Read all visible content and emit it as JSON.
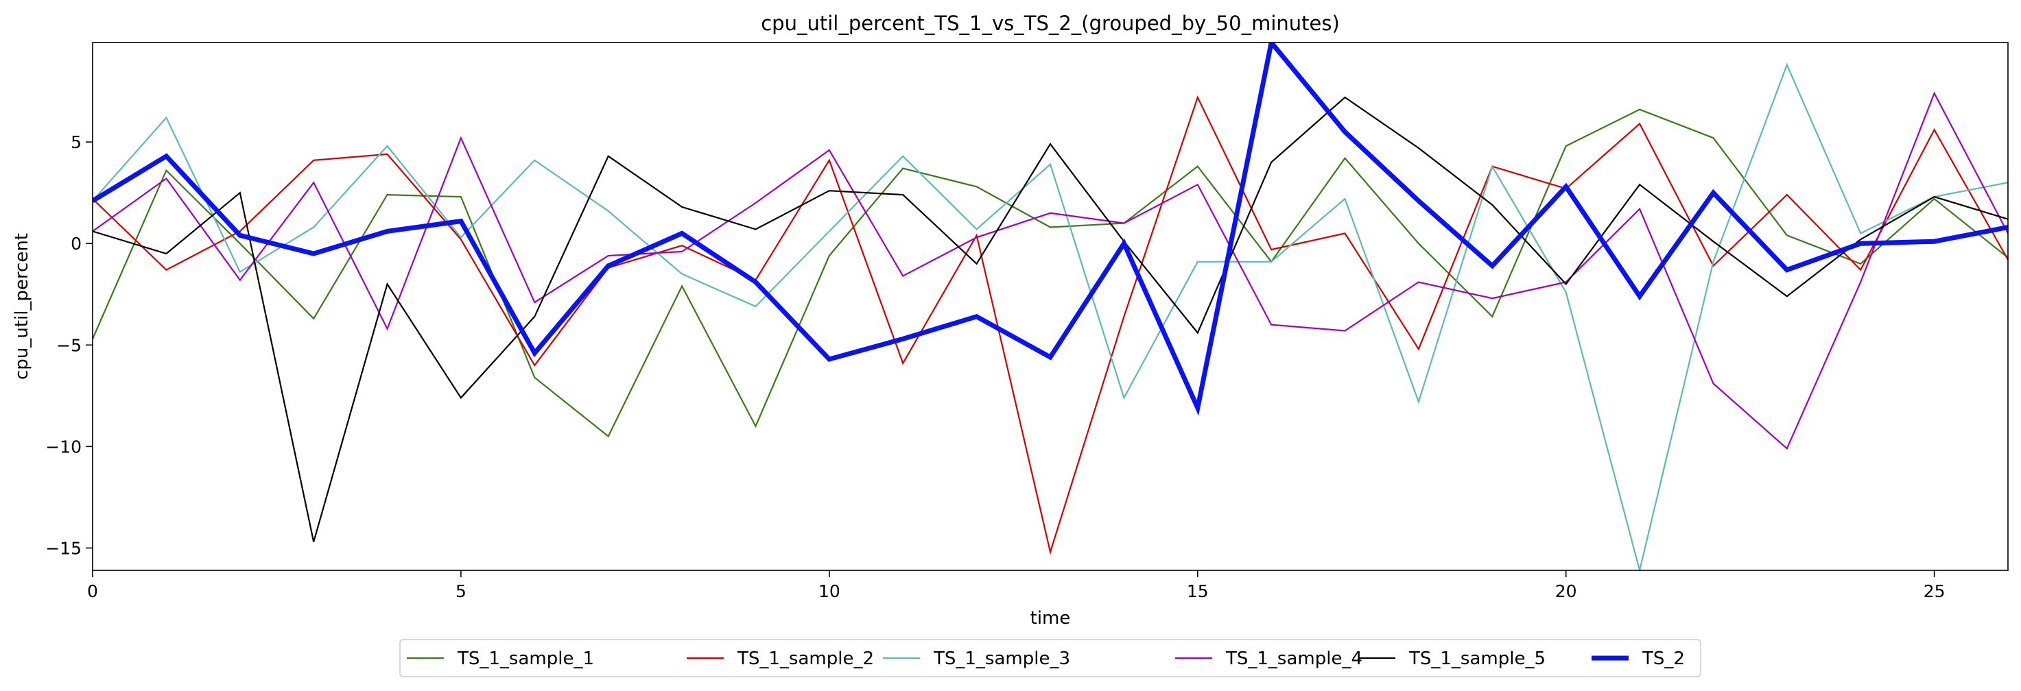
{
  "chart_data": {
    "type": "line",
    "title": "cpu_util_percent_TS_1_vs_TS_2_(grouped_by_50_minutes)",
    "xlabel": "time",
    "ylabel": "cpu_util_percent",
    "xlim": [
      0,
      26
    ],
    "ylim": [
      -16.1,
      9.9
    ],
    "xticks": [
      0,
      5,
      10,
      15,
      20,
      25
    ],
    "yticks": [
      -15,
      -10,
      -5,
      0,
      5
    ],
    "x": [
      0,
      1,
      2,
      3,
      4,
      5,
      6,
      7,
      8,
      9,
      10,
      11,
      12,
      13,
      14,
      15,
      16,
      17,
      18,
      19,
      20,
      21,
      22,
      23,
      24,
      25,
      26
    ],
    "grid": false,
    "legend_position": "bottom-center",
    "series": [
      {
        "name": "TS_1_sample_1",
        "color": "#3a7a1a",
        "width": 1,
        "values": [
          -4.7,
          3.6,
          0.0,
          -3.7,
          2.4,
          2.3,
          -6.6,
          -9.5,
          -2.1,
          -9.0,
          -0.6,
          3.7,
          2.8,
          0.8,
          1.0,
          3.8,
          -0.9,
          4.2,
          0.0,
          -3.6,
          4.8,
          6.6,
          5.2,
          0.4,
          -1.0,
          2.2,
          -0.7
        ]
      },
      {
        "name": "TS_1_sample_2",
        "color": "#d40000",
        "width": 1,
        "values": [
          2.2,
          -1.3,
          0.6,
          4.1,
          4.4,
          0.2,
          -6.0,
          -1.2,
          -0.1,
          -1.8,
          4.1,
          -5.9,
          0.4,
          -15.2,
          -3.6,
          7.2,
          -0.3,
          0.5,
          -5.2,
          3.8,
          2.7,
          5.9,
          -1.1,
          2.4,
          -1.3,
          5.6,
          -0.8
        ]
      },
      {
        "name": "TS_1_sample_3",
        "color": "#5fb8b8",
        "width": 1,
        "values": [
          2.1,
          6.2,
          -1.4,
          0.8,
          4.8,
          0.3,
          4.1,
          1.6,
          -1.5,
          -3.1,
          0.6,
          4.3,
          0.7,
          3.9,
          -7.6,
          -0.9,
          -0.9,
          2.2,
          -7.8,
          3.8,
          -2.4,
          -16.1,
          -0.9,
          8.8,
          0.5,
          2.3,
          3.0
        ]
      },
      {
        "name": "TS_1_sample_4",
        "color": "#a000c0",
        "width": 1,
        "values": [
          0.6,
          3.2,
          -1.8,
          3.0,
          -4.2,
          5.2,
          -2.9,
          -0.6,
          -0.4,
          2.0,
          4.6,
          -1.6,
          0.3,
          1.5,
          1.0,
          2.9,
          -4.0,
          -4.3,
          -1.9,
          -2.7,
          -1.9,
          1.7,
          -6.9,
          -10.1,
          -1.9,
          7.4,
          0.5
        ]
      },
      {
        "name": "TS_1_sample_5",
        "color": "#000000",
        "width": 1,
        "values": [
          0.6,
          -0.5,
          2.5,
          -14.7,
          -2.0,
          -7.6,
          -3.6,
          4.3,
          1.8,
          0.7,
          2.6,
          2.4,
          -1.0,
          4.9,
          0.1,
          -4.4,
          4.0,
          7.2,
          4.7,
          1.9,
          -2.0,
          2.9,
          0.1,
          -2.6,
          0.2,
          2.3,
          1.2
        ]
      },
      {
        "name": "TS_2",
        "color": "#0a14f0",
        "width": 3,
        "values": [
          2.1,
          4.3,
          0.4,
          -0.5,
          0.6,
          1.1,
          -5.4,
          -1.1,
          0.5,
          -1.9,
          -5.7,
          -4.7,
          -3.6,
          -5.6,
          0.0,
          -8.1,
          9.9,
          5.5,
          2.1,
          -1.1,
          2.8,
          -2.6,
          2.5,
          -1.3,
          0.0,
          0.1,
          0.8
        ]
      }
    ]
  }
}
